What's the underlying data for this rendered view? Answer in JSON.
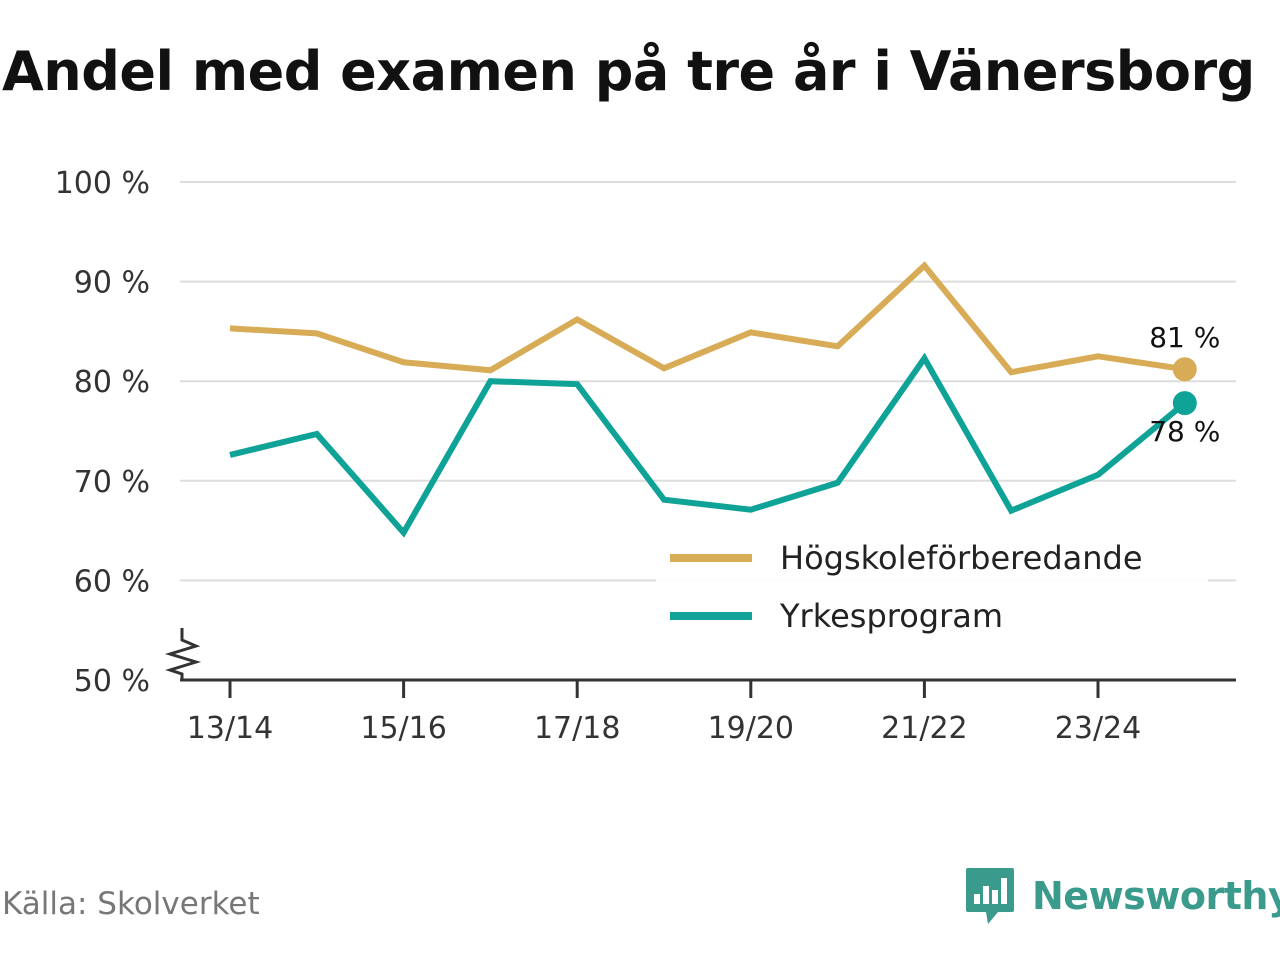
{
  "title": "Andel med examen på tre år i Vänersborg",
  "source": "Källa: Skolverket",
  "brand": {
    "name": "Newsworthy",
    "icon": "newsworthy-logo-icon",
    "color": "#3a9a8c"
  },
  "chart_data": {
    "type": "line",
    "title": "Andel med examen på tre år i Vänersborg",
    "xlabel": "",
    "ylabel": "",
    "x": [
      "13/14",
      "14/15",
      "15/16",
      "16/17",
      "17/18",
      "18/19",
      "19/20",
      "20/21",
      "21/22",
      "22/23",
      "23/24",
      "24/25"
    ],
    "x_tick_labels": [
      "13/14",
      "15/16",
      "17/18",
      "19/20",
      "21/22",
      "23/24"
    ],
    "ylim": [
      50,
      100
    ],
    "y_ticks": [
      50,
      60,
      70,
      80,
      90,
      100
    ],
    "y_tick_labels": [
      "50 %",
      "60 %",
      "70 %",
      "80 %",
      "90 %",
      "100 %"
    ],
    "y_axis_break": true,
    "grid": true,
    "legend_position": "bottom-right",
    "series": [
      {
        "name": "Högskoleförberedande",
        "color": "#d8ac57",
        "values": [
          85.3,
          84.8,
          81.9,
          81.1,
          86.2,
          81.3,
          84.9,
          83.5,
          91.6,
          80.9,
          82.5,
          81.2
        ],
        "end_label": "81 %"
      },
      {
        "name": "Yrkesprogram",
        "color": "#0fa398",
        "values": [
          72.6,
          74.7,
          64.8,
          80.0,
          79.7,
          68.1,
          67.1,
          69.8,
          82.3,
          67.0,
          70.6,
          77.8
        ],
        "end_label": "78 %"
      }
    ]
  }
}
